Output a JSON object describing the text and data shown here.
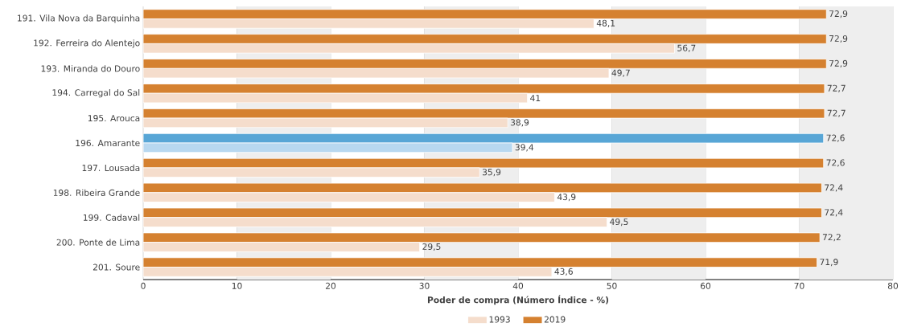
{
  "chart_data": {
    "type": "bar",
    "orientation": "horizontal",
    "xlabel": "Poder de compra (Número Índice - %)",
    "categories": [
      "191. Vila Nova da Barquinha",
      "192. Ferreira do Alentejo",
      "193. Miranda do Douro",
      "194. Carregal do Sal",
      "195. Arouca",
      "196. Amarante",
      "197. Lousada",
      "198. Ribeira Grande",
      "199. Cadaval",
      "200. Ponte de Lima",
      "201. Soure"
    ],
    "series": [
      {
        "name": "2019",
        "values": [
          72.9,
          72.9,
          72.9,
          72.7,
          72.7,
          72.6,
          72.6,
          72.4,
          72.4,
          72.2,
          71.9
        ],
        "value_labels": [
          "72,9",
          "72,9",
          "72,9",
          "72,7",
          "72,7",
          "72,6",
          "72,6",
          "72,4",
          "72,4",
          "72,2",
          "71,9"
        ],
        "colors": [
          "#d58130",
          "#d58130",
          "#d58130",
          "#d58130",
          "#d58130",
          "#58a6d6",
          "#d58130",
          "#d58130",
          "#d58130",
          "#d58130",
          "#d58130"
        ]
      },
      {
        "name": "1993",
        "values": [
          48.1,
          56.7,
          49.7,
          41,
          38.9,
          39.4,
          35.9,
          43.9,
          49.5,
          29.5,
          43.6
        ],
        "value_labels": [
          "48,1",
          "56,7",
          "49,7",
          "41",
          "38,9",
          "39,4",
          "35,9",
          "43,9",
          "49,5",
          "29,5",
          "43,6"
        ],
        "colors": [
          "#f5ddcc",
          "#f5ddcc",
          "#f5ddcc",
          "#f5ddcc",
          "#f5ddcc",
          "#b8d8f0",
          "#f5ddcc",
          "#f5ddcc",
          "#f5ddcc",
          "#f5ddcc",
          "#f5ddcc"
        ]
      }
    ],
    "xlim": [
      0,
      80
    ],
    "xticks": [
      0,
      10,
      20,
      30,
      40,
      50,
      60,
      70,
      80
    ],
    "grid": "x",
    "legend": "bottom",
    "bands": [
      {
        "axis": "x",
        "from": 10,
        "to": 20,
        "color": "#eeeeee"
      },
      {
        "axis": "x",
        "from": 30,
        "to": 40,
        "color": "#eeeeee"
      },
      {
        "axis": "x",
        "from": 50,
        "to": 60,
        "color": "#eeeeee"
      },
      {
        "axis": "x",
        "from": 70,
        "to": 80,
        "color": "#eeeeee"
      }
    ]
  }
}
